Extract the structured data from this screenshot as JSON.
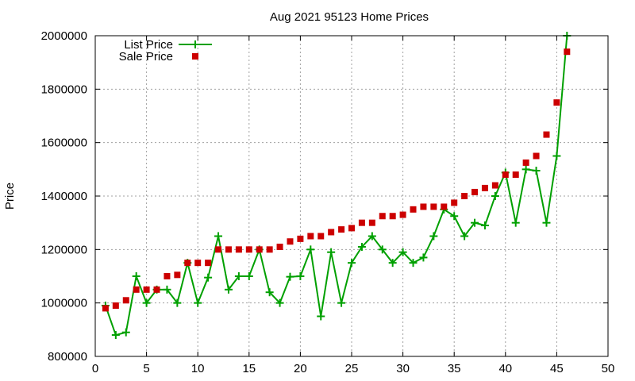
{
  "chart_data": {
    "type": "line",
    "title": "Aug 2021 95123 Home Prices",
    "xlabel": "",
    "ylabel": "Price",
    "xlim": [
      0,
      50
    ],
    "ylim": [
      800000,
      2000000
    ],
    "xticks": [
      0,
      5,
      10,
      15,
      20,
      25,
      30,
      35,
      40,
      45,
      50
    ],
    "yticks": [
      800000,
      1000000,
      1200000,
      1400000,
      1600000,
      1800000,
      2000000
    ],
    "grid": true,
    "legend_position": "top-left",
    "x": [
      1,
      2,
      3,
      4,
      5,
      6,
      7,
      8,
      9,
      10,
      11,
      12,
      13,
      14,
      15,
      16,
      17,
      18,
      19,
      20,
      21,
      22,
      23,
      24,
      25,
      26,
      27,
      28,
      29,
      30,
      31,
      32,
      33,
      34,
      35,
      36,
      37,
      38,
      39,
      40,
      41,
      42,
      43,
      44,
      45,
      46
    ],
    "series": [
      {
        "name": "List Price",
        "style": "lines+crosses",
        "color": "#00a000",
        "values": [
          990000,
          880000,
          890000,
          1100000,
          1000000,
          1050000,
          1050000,
          1000000,
          1150000,
          1000000,
          1095000,
          1250000,
          1050000,
          1100000,
          1100000,
          1200000,
          1040000,
          1000000,
          1098000,
          1100000,
          1200000,
          950000,
          1190000,
          1000000,
          1150000,
          1210000,
          1250000,
          1200000,
          1150000,
          1190000,
          1150000,
          1170000,
          1250000,
          1350000,
          1325000,
          1250000,
          1300000,
          1290000,
          1400000,
          1488000,
          1300000,
          1500000,
          1495000,
          1300000,
          1550000,
          2000000
        ]
      },
      {
        "name": "Sale Price",
        "style": "squares",
        "color": "#cc0000",
        "values": [
          980000,
          990000,
          1010000,
          1050000,
          1050000,
          1050000,
          1100000,
          1105000,
          1150000,
          1150000,
          1150000,
          1200000,
          1200000,
          1200000,
          1200000,
          1200000,
          1200000,
          1210000,
          1230000,
          1240000,
          1250000,
          1250000,
          1265000,
          1275000,
          1280000,
          1300000,
          1300000,
          1325000,
          1325000,
          1330000,
          1350000,
          1360000,
          1360000,
          1360000,
          1375000,
          1400000,
          1415000,
          1430000,
          1440000,
          1480000,
          1480000,
          1525000,
          1550000,
          1630000,
          1750000,
          1940000
        ]
      }
    ]
  }
}
